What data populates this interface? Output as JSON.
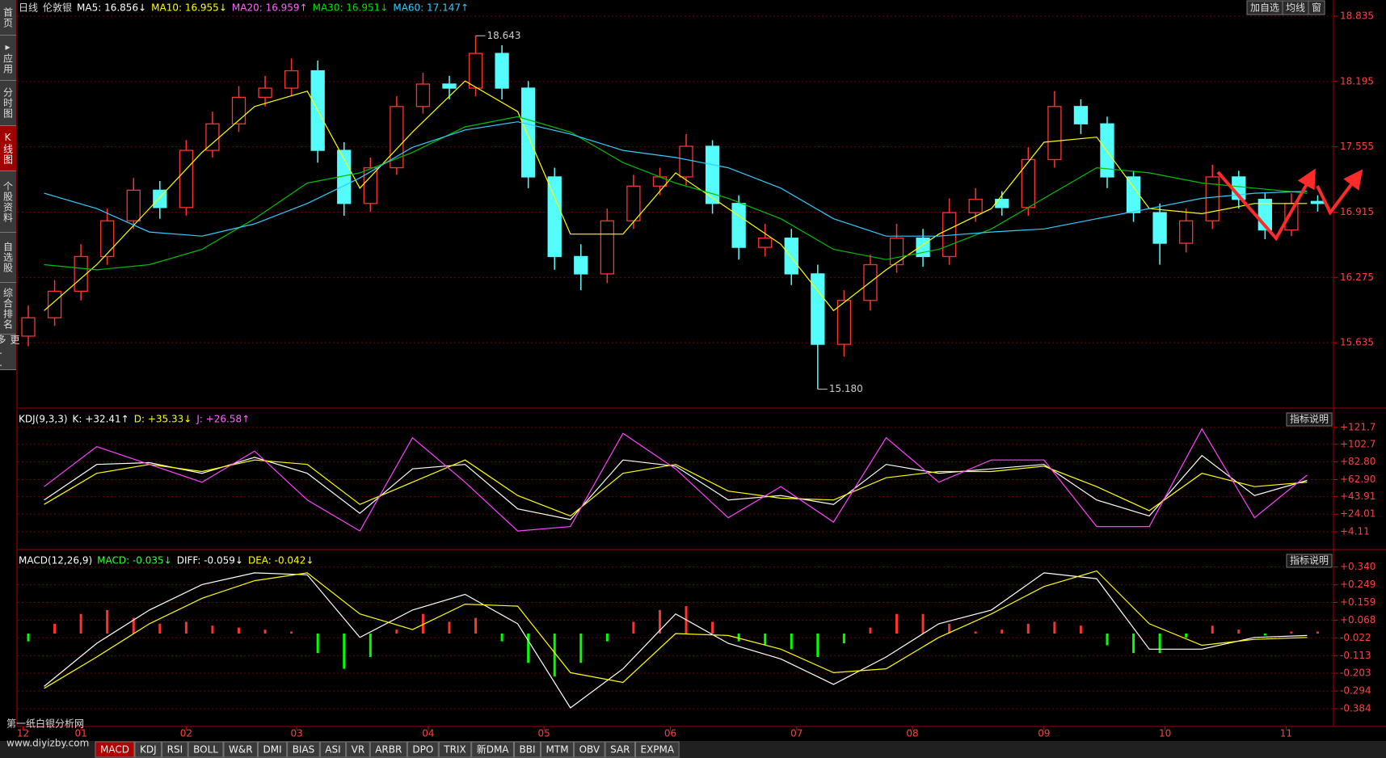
{
  "sidebar": [
    "首页",
    "▸应用",
    "分时图",
    "K线图",
    "个股资料",
    "自选股",
    "综合排名",
    "更多.."
  ],
  "toolbar": [
    "加自选",
    "均线",
    "窗"
  ],
  "x_axis": {
    "xlim": [
      0,
      250
    ],
    "ticks": [
      {
        "value": 1,
        "label": "12"
      },
      {
        "value": 12,
        "label": "01"
      },
      {
        "value": 32,
        "label": "02"
      },
      {
        "value": 53,
        "label": "03"
      },
      {
        "value": 78,
        "label": "04"
      },
      {
        "value": 100,
        "label": "05"
      },
      {
        "value": 124,
        "label": "06"
      },
      {
        "value": 148,
        "label": "07"
      },
      {
        "value": 170,
        "label": "08"
      },
      {
        "value": 195,
        "label": "09"
      },
      {
        "value": 218,
        "label": "10"
      },
      {
        "value": 241,
        "label": "11"
      }
    ]
  },
  "main": {
    "legend": [
      {
        "text": "日线",
        "color": "#dddddd"
      },
      {
        "text": "伦敦银",
        "color": "#dddddd"
      },
      {
        "text": "MA5: 16.856↓",
        "color": "#ffffff"
      },
      {
        "text": "MA10: 16.955↓",
        "color": "#ffff00"
      },
      {
        "text": "MA20: 16.959↑",
        "color": "#ff66ff"
      },
      {
        "text": "MA30: 16.951↓",
        "color": "#00e000"
      },
      {
        "text": "MA60: 17.147↑",
        "color": "#33ccff"
      }
    ],
    "ylim": [
      14.995,
      18.835
    ],
    "yticks": [
      18.835,
      18.195,
      17.555,
      16.915,
      16.275,
      15.635
    ],
    "up_color": "#ff3232",
    "down_color": "#54fcfc",
    "candles": {
      "x": [
        2,
        7,
        12,
        17,
        22,
        27,
        32,
        37,
        42,
        47,
        52,
        57,
        62,
        67,
        72,
        77,
        82,
        87,
        92,
        97,
        102,
        107,
        112,
        117,
        122,
        127,
        132,
        137,
        142,
        147,
        152,
        157,
        162,
        167,
        172,
        177,
        182,
        187,
        192,
        197,
        202,
        207,
        212,
        217,
        222,
        227,
        232,
        237,
        242,
        247
      ],
      "open": [
        15.7,
        15.88,
        16.14,
        16.48,
        16.83,
        17.13,
        16.96,
        17.52,
        17.78,
        18.04,
        18.13,
        18.3,
        17.52,
        17.0,
        17.35,
        17.95,
        18.17,
        18.13,
        18.47,
        18.13,
        17.26,
        16.48,
        16.31,
        16.83,
        17.17,
        17.26,
        17.56,
        17.0,
        16.57,
        16.66,
        16.31,
        15.62,
        16.05,
        16.4,
        16.66,
        16.48,
        16.91,
        17.04,
        16.96,
        17.43,
        17.95,
        17.78,
        17.26,
        16.91,
        16.61,
        16.83,
        17.26,
        17.04,
        16.74,
        17.02
      ],
      "high": [
        16.0,
        16.25,
        16.6,
        16.95,
        17.25,
        17.22,
        17.62,
        17.9,
        18.15,
        18.25,
        18.42,
        18.4,
        17.6,
        17.45,
        18.05,
        18.28,
        18.25,
        18.643,
        18.55,
        18.2,
        17.35,
        16.6,
        16.95,
        17.28,
        17.35,
        17.68,
        17.62,
        17.08,
        16.8,
        16.75,
        16.4,
        16.15,
        16.5,
        16.8,
        16.75,
        17.05,
        17.15,
        17.12,
        17.55,
        18.1,
        18.02,
        17.85,
        17.32,
        17.0,
        16.95,
        17.38,
        17.32,
        17.1,
        17.1,
        17.08
      ],
      "low": [
        15.6,
        15.8,
        16.05,
        16.4,
        16.75,
        16.85,
        16.88,
        17.45,
        17.7,
        17.95,
        18.05,
        17.4,
        16.88,
        16.92,
        17.28,
        17.88,
        18.02,
        18.05,
        18.02,
        17.15,
        16.35,
        16.15,
        16.22,
        16.75,
        17.08,
        17.18,
        16.9,
        16.45,
        16.48,
        16.2,
        15.18,
        15.5,
        15.95,
        16.32,
        16.38,
        16.4,
        16.82,
        16.88,
        16.88,
        17.35,
        17.68,
        17.15,
        16.82,
        16.4,
        16.52,
        16.75,
        16.95,
        16.65,
        16.68,
        16.92
      ],
      "close": [
        15.88,
        16.14,
        16.48,
        16.83,
        17.13,
        16.96,
        17.52,
        17.78,
        18.04,
        18.13,
        18.3,
        17.52,
        17.0,
        17.35,
        17.95,
        18.17,
        18.13,
        18.47,
        18.13,
        17.26,
        16.48,
        16.31,
        16.83,
        17.17,
        17.26,
        17.56,
        17.0,
        16.57,
        16.66,
        16.31,
        15.62,
        16.05,
        16.4,
        16.66,
        16.48,
        16.91,
        17.04,
        16.96,
        17.43,
        17.95,
        17.78,
        17.26,
        16.91,
        16.61,
        16.83,
        17.26,
        17.04,
        16.74,
        17.0,
        17.0
      ]
    },
    "ma_lines": [
      {
        "color": "#ffff00",
        "x": [
          5,
          15,
          25,
          35,
          45,
          55,
          65,
          75,
          85,
          95,
          105,
          115,
          125,
          135,
          145,
          155,
          165,
          175,
          185,
          195,
          205,
          215,
          225,
          235,
          245
        ],
        "values": [
          15.95,
          16.4,
          16.95,
          17.5,
          17.95,
          18.1,
          17.15,
          17.7,
          18.2,
          17.9,
          16.7,
          16.7,
          17.3,
          16.95,
          16.6,
          15.95,
          16.35,
          16.7,
          16.95,
          17.6,
          17.65,
          16.95,
          16.9,
          17.0,
          17.0
        ]
      },
      {
        "color": "#00c000",
        "x": [
          5,
          15,
          25,
          35,
          45,
          55,
          65,
          75,
          85,
          95,
          105,
          115,
          125,
          135,
          145,
          155,
          165,
          175,
          185,
          195,
          205,
          215,
          225,
          235,
          245
        ],
        "values": [
          16.4,
          16.35,
          16.4,
          16.55,
          16.85,
          17.2,
          17.3,
          17.5,
          17.75,
          17.85,
          17.7,
          17.4,
          17.2,
          17.05,
          16.85,
          16.55,
          16.45,
          16.55,
          16.75,
          17.05,
          17.35,
          17.3,
          17.2,
          17.15,
          17.1
        ]
      },
      {
        "color": "#33ccff",
        "x": [
          5,
          15,
          25,
          35,
          45,
          55,
          65,
          75,
          85,
          95,
          105,
          115,
          125,
          135,
          145,
          155,
          165,
          175,
          185,
          195,
          205,
          215,
          225,
          235,
          245
        ],
        "values": [
          17.1,
          16.95,
          16.72,
          16.68,
          16.8,
          17.0,
          17.25,
          17.55,
          17.72,
          17.8,
          17.68,
          17.52,
          17.45,
          17.35,
          17.15,
          16.85,
          16.68,
          16.68,
          16.72,
          16.75,
          16.85,
          16.95,
          17.05,
          17.1,
          17.12
        ]
      }
    ],
    "annotations": [
      {
        "x": 87,
        "value": 18.643
      },
      {
        "x": 152,
        "value": 15.18,
        "label": "15.180"
      }
    ]
  },
  "kdj": {
    "legend": [
      {
        "text": "KDJ(9,3,3)",
        "color": "#ffffff"
      },
      {
        "text": "K: +32.41↑",
        "color": "#ffffff"
      },
      {
        "text": "D: +35.33↓",
        "color": "#ffff00"
      },
      {
        "text": "J: +26.58↑",
        "color": "#ff66ff"
      }
    ],
    "button": "指标说明",
    "ylim": [
      -15.8,
      141.6
    ],
    "yticks": [
      {
        "value": 121.7,
        "label": "+121.7"
      },
      {
        "value": 102.7,
        "label": "+102.7"
      },
      {
        "value": 82.8,
        "label": "+82.80"
      },
      {
        "value": 62.9,
        "label": "+62.90"
      },
      {
        "value": 43.91,
        "label": "+43.91"
      },
      {
        "value": 24.01,
        "label": "+24.01"
      },
      {
        "value": 4.11,
        "label": "+4.11"
      }
    ],
    "x": [
      5,
      15,
      25,
      35,
      45,
      55,
      65,
      75,
      85,
      95,
      105,
      115,
      125,
      135,
      145,
      155,
      165,
      175,
      185,
      195,
      205,
      215,
      225,
      235,
      245
    ],
    "series": [
      {
        "color": "#ffffff",
        "values": [
          40,
          80,
          82,
          70,
          88,
          70,
          25,
          75,
          80,
          30,
          18,
          85,
          78,
          40,
          45,
          35,
          80,
          70,
          75,
          80,
          40,
          22,
          90,
          45,
          62
        ]
      },
      {
        "color": "#ffff00",
        "values": [
          35,
          70,
          80,
          72,
          85,
          80,
          35,
          60,
          85,
          45,
          22,
          70,
          80,
          50,
          42,
          40,
          65,
          72,
          72,
          78,
          55,
          28,
          70,
          55,
          60
        ]
      },
      {
        "color": "#ff44ff",
        "values": [
          55,
          100,
          80,
          60,
          95,
          40,
          5,
          110,
          60,
          5,
          10,
          115,
          75,
          20,
          55,
          15,
          110,
          60,
          85,
          85,
          10,
          10,
          120,
          20,
          68
        ]
      }
    ]
  },
  "macd": {
    "legend": [
      {
        "text": "MACD(12,26,9)",
        "color": "#ffffff"
      },
      {
        "text": "MACD: -0.035↓",
        "color": "#33ff33"
      },
      {
        "text": "DIFF: -0.059↓",
        "color": "#ffffff"
      },
      {
        "text": "DEA: -0.042↓",
        "color": "#ffff00"
      }
    ],
    "button": "指标说明",
    "ylim": [
      -0.475,
      0.421
    ],
    "yticks": [
      {
        "value": 0.34,
        "label": "+0.340"
      },
      {
        "value": 0.249,
        "label": "+0.249"
      },
      {
        "value": 0.159,
        "label": "+0.159"
      },
      {
        "value": 0.068,
        "label": "+0.068"
      },
      -0.022,
      -0.113,
      -0.203,
      -0.294,
      -0.384
    ],
    "hist": {
      "up_color": "#ff3232",
      "down_color": "#00ff00",
      "x": [
        2,
        7,
        12,
        17,
        22,
        27,
        32,
        37,
        42,
        47,
        52,
        57,
        62,
        67,
        72,
        77,
        82,
        87,
        92,
        97,
        102,
        107,
        112,
        117,
        122,
        127,
        132,
        137,
        142,
        147,
        152,
        157,
        162,
        167,
        172,
        177,
        182,
        187,
        192,
        197,
        202,
        207,
        212,
        217,
        222,
        227,
        232,
        237,
        242,
        247
      ],
      "values": [
        -0.04,
        0.05,
        0.1,
        0.12,
        0.08,
        0.05,
        0.06,
        0.04,
        0.03,
        0.02,
        0.01,
        -0.1,
        -0.18,
        -0.12,
        0.02,
        0.1,
        0.06,
        0.08,
        -0.04,
        -0.15,
        -0.22,
        -0.15,
        -0.04,
        0.06,
        0.12,
        0.14,
        0.06,
        -0.04,
        -0.06,
        -0.08,
        -0.12,
        -0.05,
        0.03,
        0.1,
        0.1,
        0.05,
        0.01,
        0.02,
        0.05,
        0.06,
        0.04,
        -0.06,
        -0.1,
        -0.1,
        -0.02,
        0.04,
        0.02,
        -0.01,
        0.01,
        0.01
      ]
    },
    "x": [
      5,
      15,
      25,
      35,
      45,
      55,
      65,
      75,
      85,
      95,
      105,
      115,
      125,
      135,
      145,
      155,
      165,
      175,
      185,
      195,
      205,
      215,
      225,
      235,
      245
    ],
    "series": [
      {
        "color": "#ffffff",
        "values": [
          -0.27,
          -0.05,
          0.12,
          0.25,
          0.31,
          0.3,
          -0.02,
          0.12,
          0.2,
          0.05,
          -0.38,
          -0.18,
          0.1,
          -0.05,
          -0.13,
          -0.26,
          -0.12,
          0.05,
          0.12,
          0.31,
          0.28,
          -0.08,
          -0.08,
          -0.02,
          -0.01
        ]
      },
      {
        "color": "#ffff00",
        "values": [
          -0.28,
          -0.12,
          0.05,
          0.18,
          0.27,
          0.31,
          0.1,
          0.02,
          0.15,
          0.14,
          -0.2,
          -0.25,
          0.0,
          -0.01,
          -0.08,
          -0.2,
          -0.18,
          -0.02,
          0.1,
          0.24,
          0.32,
          0.05,
          -0.06,
          -0.03,
          -0.02
        ]
      }
    ]
  },
  "tabs": [
    "MACD",
    "KDJ",
    "RSI",
    "BOLL",
    "W&R",
    "DMI",
    "BIAS",
    "ASI",
    "VR",
    "ARBR",
    "DPO",
    "TRIX",
    "新DMA",
    "BBI",
    "MTM",
    "OBV",
    "SAR",
    "EXPMA"
  ],
  "watermark": [
    "第一纸白银分析网",
    "www.diyizby.com"
  ]
}
